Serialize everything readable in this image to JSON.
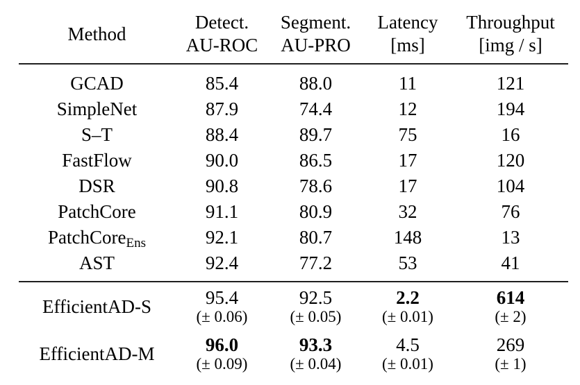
{
  "table": {
    "colors": {
      "text": "#000000",
      "rule": "#1f1f1f",
      "background": "#ffffff"
    },
    "header": {
      "method_label": "Method",
      "columns": [
        {
          "line1": "Detect.",
          "line2": "AU-ROC"
        },
        {
          "line1": "Segment.",
          "line2": "AU-PRO"
        },
        {
          "line1": "Latency",
          "line2": "[ms]"
        },
        {
          "line1": "Throughput",
          "line2": "[img / s]"
        }
      ]
    },
    "baseline_rows": [
      {
        "method": "GCAD",
        "detect_auroc": "85.4",
        "segment_aupro": "88.0",
        "latency_ms": "11",
        "throughput_img_s": "121"
      },
      {
        "method": "SimpleNet",
        "detect_auroc": "87.9",
        "segment_aupro": "74.4",
        "latency_ms": "12",
        "throughput_img_s": "194"
      },
      {
        "method": "S–T",
        "detect_auroc": "88.4",
        "segment_aupro": "89.7",
        "latency_ms": "75",
        "throughput_img_s": "16"
      },
      {
        "method": "FastFlow",
        "detect_auroc": "90.0",
        "segment_aupro": "86.5",
        "latency_ms": "17",
        "throughput_img_s": "120"
      },
      {
        "method": "DSR",
        "detect_auroc": "90.8",
        "segment_aupro": "78.6",
        "latency_ms": "17",
        "throughput_img_s": "104"
      },
      {
        "method": "PatchCore",
        "detect_auroc": "91.1",
        "segment_aupro": "80.9",
        "latency_ms": "32",
        "throughput_img_s": "76"
      },
      {
        "method": "PatchCore",
        "method_subscript": "Ens",
        "detect_auroc": "92.1",
        "segment_aupro": "80.7",
        "latency_ms": "148",
        "throughput_img_s": "13"
      },
      {
        "method": "AST",
        "detect_auroc": "92.4",
        "segment_aupro": "77.2",
        "latency_ms": "53",
        "throughput_img_s": "41"
      }
    ],
    "efficientad_rows": [
      {
        "method": "EfficientAD-S",
        "detect": {
          "value": "95.4",
          "pm": "(± 0.06)",
          "bold": false
        },
        "segment": {
          "value": "92.5",
          "pm": "(± 0.05)",
          "bold": false
        },
        "latency": {
          "value": "2.2",
          "pm": "(± 0.01)",
          "bold": true
        },
        "throughput": {
          "value": "614",
          "pm": "(± 2)",
          "bold": true
        }
      },
      {
        "method": "EfficientAD-M",
        "detect": {
          "value": "96.0",
          "pm": "(± 0.09)",
          "bold": true
        },
        "segment": {
          "value": "93.3",
          "pm": "(± 0.04)",
          "bold": true
        },
        "latency": {
          "value": "4.5",
          "pm": "(± 0.01)",
          "bold": false
        },
        "throughput": {
          "value": "269",
          "pm": "(± 1)",
          "bold": false
        }
      }
    ]
  }
}
